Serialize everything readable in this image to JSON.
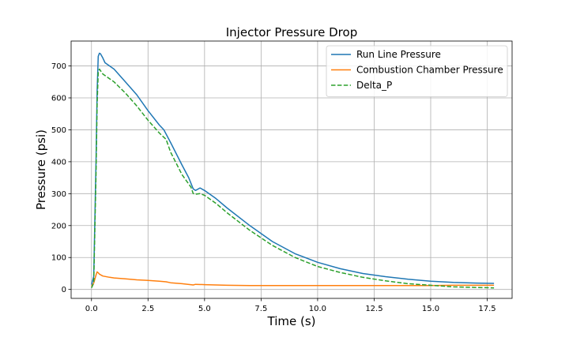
{
  "chart_data": {
    "type": "line",
    "title": "Injector Pressure Drop",
    "xlabel": "Time (s)",
    "ylabel": "Pressure (psi)",
    "xlim": [
      -0.9,
      18.6
    ],
    "ylim": [
      -28,
      778
    ],
    "xticks": [
      0.0,
      2.5,
      5.0,
      7.5,
      10.0,
      12.5,
      15.0,
      17.5
    ],
    "xtick_labels": [
      "0.0",
      "2.5",
      "5.0",
      "7.5",
      "10.0",
      "12.5",
      "15.0",
      "17.5"
    ],
    "yticks": [
      0,
      100,
      200,
      300,
      400,
      500,
      600,
      700
    ],
    "ytick_labels": [
      "0",
      "100",
      "200",
      "300",
      "400",
      "500",
      "600",
      "700"
    ],
    "grid": true,
    "legend_position": "top-right",
    "series": [
      {
        "name": "Run Line Pressure",
        "color": "#1f77b4",
        "style": "solid",
        "x": [
          0.0,
          0.1,
          0.2,
          0.25,
          0.3,
          0.35,
          0.4,
          0.5,
          0.6,
          0.8,
          1.0,
          1.5,
          2.0,
          2.5,
          3.0,
          3.2,
          3.5,
          4.0,
          4.3,
          4.5,
          4.6,
          4.8,
          5.0,
          5.5,
          6.0,
          7.0,
          8.0,
          9.0,
          10.0,
          11.0,
          12.0,
          13.0,
          14.0,
          15.0,
          16.0,
          17.0,
          17.8
        ],
        "y": [
          15,
          40,
          400,
          620,
          730,
          740,
          738,
          725,
          710,
          700,
          690,
          650,
          610,
          560,
          515,
          500,
          460,
          390,
          350,
          315,
          310,
          318,
          310,
          285,
          255,
          200,
          150,
          112,
          85,
          65,
          50,
          40,
          32,
          26,
          22,
          20,
          19
        ]
      },
      {
        "name": "Combustion Chamber Pressure",
        "color": "#ff7f0e",
        "style": "solid",
        "x": [
          0.0,
          0.1,
          0.2,
          0.25,
          0.3,
          0.35,
          0.5,
          0.8,
          1.0,
          1.5,
          2.0,
          2.5,
          3.0,
          3.3,
          3.5,
          4.0,
          4.5,
          4.6,
          5.0,
          6.0,
          7.0,
          8.0,
          9.0,
          10.0,
          11.0,
          12.0,
          13.0,
          14.0,
          15.0,
          16.0,
          17.0,
          17.8
        ],
        "y": [
          10,
          20,
          45,
          55,
          52,
          48,
          42,
          38,
          36,
          33,
          30,
          28,
          26,
          24,
          21,
          18,
          14,
          16,
          15,
          13,
          12,
          12,
          12,
          12,
          12,
          12,
          12,
          12,
          12,
          13,
          13,
          13
        ]
      },
      {
        "name": "Delta_P",
        "color": "#2ca02c",
        "style": "dashed",
        "x": [
          0.0,
          0.1,
          0.2,
          0.25,
          0.3,
          0.35,
          0.5,
          0.8,
          1.0,
          1.5,
          2.0,
          2.5,
          3.0,
          3.3,
          3.5,
          4.0,
          4.4,
          4.5,
          4.6,
          4.8,
          5.0,
          5.5,
          6.0,
          7.0,
          8.0,
          9.0,
          10.0,
          11.0,
          12.0,
          13.0,
          14.0,
          15.0,
          16.0,
          17.0,
          17.8
        ],
        "y": [
          5,
          20,
          360,
          580,
          680,
          690,
          675,
          660,
          650,
          615,
          575,
          530,
          490,
          470,
          430,
          360,
          320,
          300,
          298,
          300,
          295,
          270,
          240,
          185,
          138,
          100,
          72,
          53,
          38,
          27,
          18,
          13,
          8,
          6,
          5
        ]
      }
    ]
  }
}
